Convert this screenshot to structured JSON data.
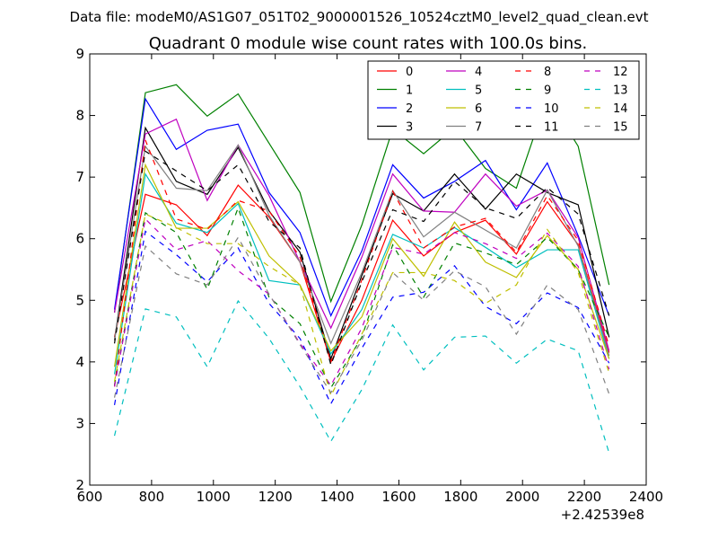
{
  "header": {
    "data_file": "Data file: modeM0/AS1G07_051T02_9000001526_10524cztM0_level2_quad_clean.evt"
  },
  "chart_data": {
    "type": "line",
    "title": "Quadrant 0 module wise count rates with 100.0s bins.",
    "xlabel": "",
    "ylabel": "",
    "x_offset_label": "+2.42539e8",
    "xlim": [
      600,
      2400
    ],
    "ylim": [
      2,
      9
    ],
    "xticks": [
      600,
      800,
      1000,
      1200,
      1400,
      1600,
      1800,
      2000,
      2200,
      2400
    ],
    "yticks": [
      2,
      3,
      4,
      5,
      6,
      7,
      8,
      9
    ],
    "legend_position": "top-right",
    "legend_columns": 4,
    "x": [
      680,
      780,
      880,
      980,
      1080,
      1180,
      1280,
      1380,
      1480,
      1580,
      1680,
      1780,
      1880,
      1980,
      2080,
      2180,
      2280
    ],
    "series": [
      {
        "name": "0",
        "color": "#ff0000",
        "style": "solid",
        "values": [
          4.4,
          6.72,
          6.55,
          6.05,
          6.87,
          6.35,
          5.62,
          4.0,
          5.0,
          6.3,
          5.72,
          6.1,
          6.3,
          5.75,
          6.6,
          5.9,
          4.15
        ]
      },
      {
        "name": "1",
        "color": "#008000",
        "style": "solid",
        "values": [
          4.8,
          8.37,
          8.5,
          7.99,
          8.35,
          7.55,
          6.75,
          4.98,
          6.22,
          7.78,
          7.38,
          7.8,
          7.14,
          6.82,
          8.3,
          7.5,
          5.25
        ]
      },
      {
        "name": "2",
        "color": "#0000ff",
        "style": "solid",
        "values": [
          4.85,
          8.27,
          7.45,
          7.76,
          7.86,
          6.75,
          6.1,
          4.75,
          5.8,
          7.2,
          6.66,
          6.93,
          7.27,
          6.47,
          7.23,
          6.05,
          4.75
        ]
      },
      {
        "name": "3",
        "color": "#000000",
        "style": "solid",
        "values": [
          4.35,
          7.8,
          6.93,
          6.72,
          7.48,
          6.45,
          5.78,
          4.05,
          5.4,
          6.73,
          6.45,
          7.05,
          6.48,
          7.05,
          6.75,
          6.55,
          4.4
        ]
      },
      {
        "name": "4",
        "color": "#bf00bf",
        "style": "solid",
        "values": [
          4.8,
          7.7,
          7.94,
          6.62,
          7.52,
          6.7,
          5.62,
          4.55,
          5.7,
          7.05,
          6.45,
          6.43,
          7.05,
          6.53,
          6.79,
          6.02,
          4.18
        ]
      },
      {
        "name": "5",
        "color": "#00bfbf",
        "style": "solid",
        "values": [
          3.8,
          7.05,
          6.25,
          6.1,
          6.57,
          5.32,
          5.25,
          4.13,
          4.85,
          6.07,
          5.85,
          6.18,
          5.86,
          5.53,
          5.82,
          5.82,
          4.05
        ]
      },
      {
        "name": "6",
        "color": "#bfbf00",
        "style": "solid",
        "values": [
          3.92,
          7.2,
          6.17,
          6.17,
          6.6,
          5.72,
          5.25,
          4.18,
          4.73,
          6.0,
          5.39,
          6.27,
          5.62,
          5.37,
          6.05,
          5.5,
          4.05
        ]
      },
      {
        "name": "7",
        "color": "#808080",
        "style": "solid",
        "values": [
          4.35,
          7.5,
          6.82,
          6.78,
          7.52,
          6.38,
          5.62,
          4.3,
          5.45,
          6.78,
          6.03,
          6.43,
          6.14,
          5.85,
          6.79,
          5.88,
          4.1
        ]
      },
      {
        "name": "8",
        "color": "#ff0000",
        "style": "dashed",
        "values": [
          3.6,
          7.6,
          6.32,
          6.15,
          6.62,
          6.45,
          5.7,
          4.0,
          5.33,
          6.77,
          5.85,
          6.19,
          6.33,
          5.78,
          6.7,
          5.97,
          4.25
        ]
      },
      {
        "name": "9",
        "color": "#008000",
        "style": "dashed",
        "values": [
          3.62,
          6.42,
          6.1,
          5.18,
          6.5,
          5.05,
          4.62,
          3.58,
          4.4,
          5.9,
          5.05,
          5.93,
          5.77,
          5.58,
          6.02,
          5.5,
          4.4
        ]
      },
      {
        "name": "10",
        "color": "#0000ff",
        "style": "dashed",
        "values": [
          3.3,
          6.12,
          5.74,
          5.3,
          5.85,
          4.95,
          4.38,
          3.32,
          4.22,
          5.05,
          5.13,
          5.56,
          4.9,
          4.62,
          5.12,
          4.88,
          3.98
        ]
      },
      {
        "name": "11",
        "color": "#000000",
        "style": "dashed",
        "values": [
          4.3,
          7.42,
          7.1,
          6.78,
          7.2,
          6.28,
          5.85,
          3.95,
          5.3,
          6.47,
          6.28,
          6.93,
          6.5,
          6.33,
          6.83,
          6.4,
          4.75
        ]
      },
      {
        "name": "12",
        "color": "#bf00bf",
        "style": "dashed",
        "values": [
          3.6,
          6.32,
          5.82,
          5.97,
          5.48,
          5.1,
          4.3,
          3.62,
          4.55,
          5.86,
          5.75,
          6.1,
          5.92,
          5.68,
          6.09,
          5.55,
          3.88
        ]
      },
      {
        "name": "13",
        "color": "#00bfbf",
        "style": "dashed",
        "values": [
          2.8,
          4.86,
          4.73,
          3.92,
          4.99,
          4.38,
          3.6,
          2.71,
          3.55,
          4.6,
          3.87,
          4.4,
          4.42,
          3.98,
          4.37,
          4.18,
          2.52
        ]
      },
      {
        "name": "14",
        "color": "#bfbf00",
        "style": "dashed",
        "values": [
          3.68,
          6.4,
          6.18,
          5.92,
          5.92,
          5.55,
          5.25,
          3.45,
          4.45,
          5.45,
          5.45,
          5.32,
          4.95,
          5.25,
          6.15,
          5.45,
          3.82
        ]
      },
      {
        "name": "15",
        "color": "#808080",
        "style": "dashed",
        "values": [
          3.42,
          5.88,
          5.43,
          5.25,
          6.02,
          5.1,
          4.28,
          3.5,
          4.35,
          5.45,
          5.0,
          5.48,
          5.22,
          4.45,
          5.25,
          4.85,
          3.48
        ]
      }
    ]
  }
}
